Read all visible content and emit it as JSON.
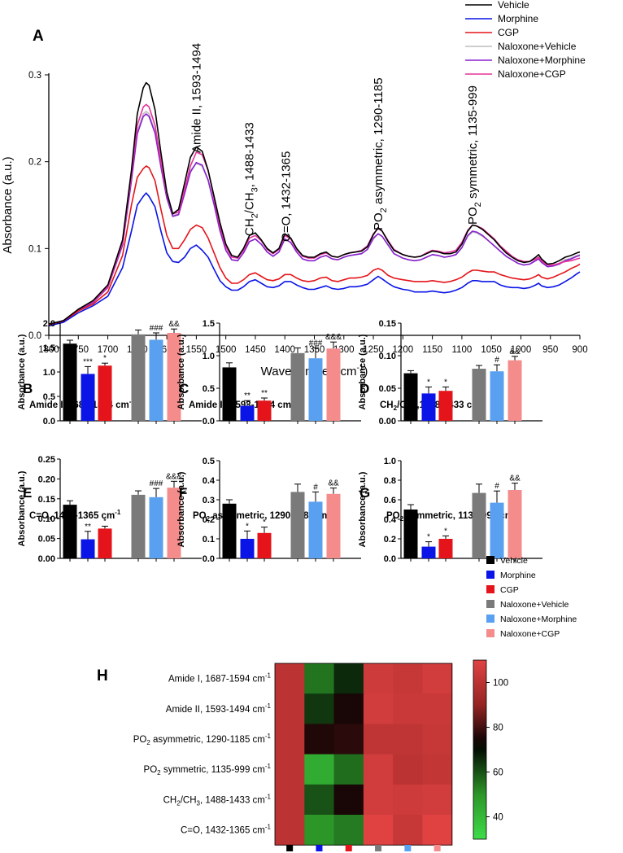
{
  "colors": {
    "vehicle": "#000000",
    "morphine": "#0a14e6",
    "cgp": "#e4141a",
    "naloxone_vehicle": "#7a7a7a",
    "naloxone_morphine": "#5aa0f0",
    "naloxone_cgp": "#f58c8c",
    "spec_naloxone_vehicle": "#bdbdbd",
    "spec_naloxone_morphine": "#8a20d0",
    "spec_naloxone_cgp": "#e6329a"
  },
  "chart_data": [
    {
      "id": "A",
      "panel_label": "A",
      "type": "line",
      "title": "",
      "xlabel_main": "Wavenumber (cm",
      "xlabel_sup": "-1",
      "xlabel_end": ")",
      "ylabel": "Absorbance (a.u.)",
      "xlim": [
        1800,
        900
      ],
      "ylim": [
        0,
        0.3
      ],
      "x_ticks": [
        "1800",
        "1750",
        "1700",
        "1650",
        "1600",
        "1550",
        "1500",
        "1450",
        "1400",
        "1350",
        "1300",
        "1250",
        "1200",
        "1150",
        "1100",
        "1050",
        "1000",
        "950",
        "900"
      ],
      "y_ticks": [
        "0.0",
        "0.1",
        "0.2",
        "0.3"
      ],
      "legend": [
        "Vehicle",
        "Morphine",
        "CGP",
        "Naloxone+Vehicle",
        "Naloxone+Morphine",
        "Naloxone+CGP"
      ],
      "band_labels": [
        {
          "x": 1550,
          "text": "Amide II, 1593-1494"
        },
        {
          "x": 1460,
          "text_pre": "CH",
          "sub1": "2",
          "text_mid": "/CH",
          "sub2": "3",
          "text_post": ", 1488-1433"
        },
        {
          "x": 1398,
          "text": "C=O, 1432-1365"
        },
        {
          "x": 1242,
          "text_pre": "PO",
          "sub1": "2",
          "text_post": " asymmetric, 1290-1185"
        },
        {
          "x": 1082,
          "text_pre": "PO",
          "sub1": "2",
          "text_post": " symmetric, 1135-999"
        }
      ],
      "x": [
        1800,
        1775,
        1750,
        1725,
        1700,
        1675,
        1660,
        1650,
        1640,
        1635,
        1630,
        1620,
        1610,
        1600,
        1590,
        1580,
        1570,
        1560,
        1550,
        1540,
        1530,
        1520,
        1510,
        1500,
        1490,
        1480,
        1470,
        1460,
        1450,
        1440,
        1430,
        1420,
        1410,
        1400,
        1390,
        1380,
        1370,
        1360,
        1350,
        1340,
        1330,
        1320,
        1310,
        1300,
        1290,
        1280,
        1270,
        1260,
        1250,
        1242,
        1235,
        1225,
        1215,
        1200,
        1190,
        1180,
        1170,
        1160,
        1150,
        1140,
        1130,
        1120,
        1110,
        1100,
        1090,
        1082,
        1075,
        1065,
        1055,
        1045,
        1035,
        1025,
        1015,
        1005,
        995,
        985,
        975,
        970,
        965,
        955,
        945,
        935,
        925,
        915,
        905,
        900
      ],
      "series": [
        {
          "name": "Vehicle",
          "values": [
            0.013,
            0.017,
            0.03,
            0.04,
            0.058,
            0.11,
            0.19,
            0.255,
            0.285,
            0.291,
            0.288,
            0.26,
            0.21,
            0.165,
            0.14,
            0.145,
            0.175,
            0.205,
            0.217,
            0.212,
            0.19,
            0.16,
            0.13,
            0.105,
            0.092,
            0.09,
            0.1,
            0.115,
            0.118,
            0.11,
            0.1,
            0.095,
            0.1,
            0.117,
            0.112,
            0.1,
            0.092,
            0.09,
            0.09,
            0.094,
            0.096,
            0.091,
            0.09,
            0.093,
            0.095,
            0.096,
            0.097,
            0.102,
            0.116,
            0.124,
            0.12,
            0.108,
            0.098,
            0.093,
            0.091,
            0.09,
            0.091,
            0.094,
            0.097,
            0.096,
            0.094,
            0.094,
            0.096,
            0.105,
            0.12,
            0.127,
            0.126,
            0.122,
            0.116,
            0.11,
            0.102,
            0.095,
            0.09,
            0.086,
            0.084,
            0.085,
            0.09,
            0.093,
            0.088,
            0.082,
            0.083,
            0.086,
            0.09,
            0.092,
            0.095,
            0.096
          ]
        },
        {
          "name": "Morphine",
          "values": [
            0.011,
            0.015,
            0.026,
            0.034,
            0.045,
            0.078,
            0.12,
            0.15,
            0.16,
            0.164,
            0.16,
            0.148,
            0.12,
            0.095,
            0.085,
            0.084,
            0.09,
            0.1,
            0.104,
            0.098,
            0.09,
            0.076,
            0.063,
            0.056,
            0.052,
            0.052,
            0.056,
            0.062,
            0.064,
            0.06,
            0.056,
            0.055,
            0.057,
            0.062,
            0.062,
            0.058,
            0.055,
            0.053,
            0.053,
            0.055,
            0.057,
            0.054,
            0.053,
            0.054,
            0.056,
            0.056,
            0.057,
            0.059,
            0.064,
            0.068,
            0.065,
            0.06,
            0.056,
            0.053,
            0.052,
            0.05,
            0.05,
            0.05,
            0.051,
            0.05,
            0.049,
            0.05,
            0.052,
            0.055,
            0.06,
            0.063,
            0.063,
            0.062,
            0.062,
            0.062,
            0.058,
            0.056,
            0.055,
            0.055,
            0.054,
            0.055,
            0.058,
            0.06,
            0.057,
            0.055,
            0.056,
            0.058,
            0.062,
            0.066,
            0.071,
            0.073
          ]
        },
        {
          "name": "CGP",
          "values": [
            0.012,
            0.016,
            0.028,
            0.036,
            0.05,
            0.092,
            0.15,
            0.182,
            0.192,
            0.195,
            0.193,
            0.178,
            0.145,
            0.115,
            0.1,
            0.1,
            0.11,
            0.122,
            0.127,
            0.124,
            0.112,
            0.095,
            0.078,
            0.066,
            0.06,
            0.06,
            0.064,
            0.07,
            0.072,
            0.068,
            0.064,
            0.063,
            0.065,
            0.07,
            0.07,
            0.066,
            0.063,
            0.062,
            0.063,
            0.066,
            0.067,
            0.063,
            0.062,
            0.064,
            0.066,
            0.066,
            0.067,
            0.069,
            0.075,
            0.077,
            0.075,
            0.069,
            0.066,
            0.064,
            0.063,
            0.062,
            0.062,
            0.062,
            0.063,
            0.062,
            0.061,
            0.062,
            0.064,
            0.067,
            0.072,
            0.075,
            0.075,
            0.074,
            0.073,
            0.073,
            0.07,
            0.068,
            0.066,
            0.065,
            0.064,
            0.065,
            0.068,
            0.07,
            0.067,
            0.065,
            0.067,
            0.07,
            0.073,
            0.077,
            0.08,
            0.082
          ]
        },
        {
          "name": "Naloxone+Vehicle",
          "values": [
            0.012,
            0.017,
            0.029,
            0.038,
            0.055,
            0.105,
            0.18,
            0.235,
            0.255,
            0.258,
            0.255,
            0.235,
            0.195,
            0.16,
            0.138,
            0.14,
            0.165,
            0.19,
            0.198,
            0.195,
            0.178,
            0.15,
            0.12,
            0.098,
            0.087,
            0.086,
            0.095,
            0.108,
            0.111,
            0.105,
            0.096,
            0.091,
            0.096,
            0.111,
            0.107,
            0.096,
            0.088,
            0.086,
            0.086,
            0.09,
            0.092,
            0.088,
            0.087,
            0.09,
            0.092,
            0.093,
            0.094,
            0.099,
            0.111,
            0.117,
            0.114,
            0.104,
            0.094,
            0.089,
            0.087,
            0.086,
            0.087,
            0.09,
            0.093,
            0.092,
            0.09,
            0.091,
            0.093,
            0.101,
            0.114,
            0.119,
            0.118,
            0.114,
            0.109,
            0.103,
            0.097,
            0.091,
            0.087,
            0.083,
            0.081,
            0.082,
            0.087,
            0.089,
            0.085,
            0.079,
            0.08,
            0.083,
            0.087,
            0.089,
            0.092,
            0.093
          ]
        },
        {
          "name": "Naloxone+Morphine",
          "values": [
            0.012,
            0.017,
            0.029,
            0.038,
            0.055,
            0.104,
            0.178,
            0.232,
            0.252,
            0.255,
            0.252,
            0.233,
            0.194,
            0.158,
            0.137,
            0.139,
            0.163,
            0.188,
            0.199,
            0.196,
            0.179,
            0.151,
            0.121,
            0.098,
            0.087,
            0.086,
            0.095,
            0.108,
            0.111,
            0.105,
            0.096,
            0.091,
            0.096,
            0.111,
            0.107,
            0.096,
            0.088,
            0.086,
            0.086,
            0.09,
            0.092,
            0.088,
            0.087,
            0.09,
            0.092,
            0.093,
            0.094,
            0.099,
            0.112,
            0.117,
            0.114,
            0.104,
            0.094,
            0.089,
            0.087,
            0.086,
            0.087,
            0.09,
            0.093,
            0.092,
            0.09,
            0.091,
            0.093,
            0.101,
            0.115,
            0.12,
            0.119,
            0.115,
            0.109,
            0.103,
            0.097,
            0.091,
            0.087,
            0.083,
            0.081,
            0.082,
            0.086,
            0.088,
            0.084,
            0.079,
            0.08,
            0.082,
            0.086,
            0.088,
            0.091,
            0.092
          ]
        },
        {
          "name": "Naloxone+CGP",
          "values": [
            0.012,
            0.017,
            0.03,
            0.039,
            0.056,
            0.107,
            0.184,
            0.242,
            0.263,
            0.266,
            0.263,
            0.242,
            0.2,
            0.163,
            0.14,
            0.142,
            0.168,
            0.195,
            0.211,
            0.208,
            0.19,
            0.158,
            0.126,
            0.102,
            0.09,
            0.089,
            0.098,
            0.112,
            0.115,
            0.109,
            0.099,
            0.094,
            0.099,
            0.115,
            0.111,
            0.099,
            0.091,
            0.089,
            0.089,
            0.093,
            0.095,
            0.091,
            0.09,
            0.093,
            0.095,
            0.096,
            0.098,
            0.103,
            0.117,
            0.123,
            0.12,
            0.109,
            0.099,
            0.093,
            0.091,
            0.09,
            0.091,
            0.095,
            0.098,
            0.097,
            0.095,
            0.096,
            0.098,
            0.107,
            0.121,
            0.127,
            0.126,
            0.123,
            0.117,
            0.111,
            0.103,
            0.097,
            0.091,
            0.087,
            0.085,
            0.085,
            0.088,
            0.09,
            0.086,
            0.081,
            0.081,
            0.083,
            0.085,
            0.086,
            0.088,
            0.089
          ]
        }
      ]
    },
    {
      "id": "B",
      "panel_label": "B",
      "type": "bar",
      "title": {
        "pre": "Amide I, 1687-1594 cm",
        "sup": "-1",
        "post": ""
      },
      "ylabel": "Absorbance (a.u.)",
      "ylim": [
        0,
        2.0
      ],
      "y_ticks": [
        "0.0",
        "0.5",
        "1.0",
        "1.5",
        "2.0"
      ],
      "values": [
        1.58,
        0.96,
        1.13,
        1.77,
        1.66,
        1.8
      ],
      "errors": [
        0.07,
        0.15,
        0.05,
        0.09,
        0.14,
        0.08
      ],
      "marks": [
        "",
        "***",
        "*",
        "",
        "###",
        "&&"
      ]
    },
    {
      "id": "C",
      "panel_label": "C",
      "type": "bar",
      "title": {
        "pre": "Amide II, 1593-1494 cm",
        "sup": "-1",
        "post": ""
      },
      "ylabel": "Absorbance (a.u.)",
      "ylim": [
        0,
        1.5
      ],
      "y_ticks": [
        "0.0",
        "0.5",
        "1.0",
        "1.5"
      ],
      "values": [
        0.82,
        0.23,
        0.31,
        1.04,
        0.96,
        1.11
      ],
      "errors": [
        0.07,
        0.08,
        0.04,
        0.08,
        0.16,
        0.1
      ],
      "marks": [
        "",
        "**",
        "**",
        "",
        "###",
        "&&&"
      ]
    },
    {
      "id": "D",
      "panel_label": "D",
      "type": "bar",
      "title": {
        "pre": "CH",
        "sub1": "2",
        "mid": "/CH",
        "sub2": "3",
        "post": ",1488-1433 cm",
        "sup": "-1"
      },
      "ylabel": "Absorbance (a.u.)",
      "ylim": [
        0,
        0.15
      ],
      "y_ticks": [
        "0.00",
        "0.05",
        "0.10",
        "0.15"
      ],
      "values": [
        0.073,
        0.042,
        0.046,
        0.08,
        0.076,
        0.093
      ],
      "errors": [
        0.004,
        0.01,
        0.006,
        0.005,
        0.01,
        0.006
      ],
      "marks": [
        "",
        "*",
        "*",
        "",
        "#",
        "&&"
      ]
    },
    {
      "id": "E",
      "panel_label": "E",
      "type": "bar",
      "title": {
        "pre": "C=O, 1432-1365 cm",
        "sup": "-1",
        "post": ""
      },
      "ylabel": "Absorbance (a.u.)",
      "ylim": [
        0,
        0.25
      ],
      "y_ticks": [
        "0.00",
        "0.05",
        "0.10",
        "0.15",
        "0.20",
        "0.25"
      ],
      "values": [
        0.135,
        0.048,
        0.075,
        0.16,
        0.154,
        0.178
      ],
      "errors": [
        0.01,
        0.02,
        0.006,
        0.01,
        0.022,
        0.016
      ],
      "marks": [
        "",
        "**",
        "*",
        "",
        "###",
        "&&&"
      ]
    },
    {
      "id": "F",
      "panel_label": "F",
      "type": "bar",
      "title": {
        "pre": "PO",
        "sub1": "2",
        "post": " asymmetric, 1290-1185  cm",
        "sup": "-1"
      },
      "ylabel": "Absorbance (a.u.)",
      "ylim": [
        0,
        0.5
      ],
      "y_ticks": [
        "0.0",
        "0.1",
        "0.2",
        "0.3",
        "0.4",
        "0.5"
      ],
      "values": [
        0.28,
        0.1,
        0.13,
        0.34,
        0.29,
        0.33
      ],
      "errors": [
        0.02,
        0.04,
        0.03,
        0.04,
        0.05,
        0.03
      ],
      "marks": [
        "",
        "*",
        "*",
        "",
        "#",
        "&&"
      ]
    },
    {
      "id": "G",
      "panel_label": "G",
      "type": "bar",
      "title": {
        "pre": "PO",
        "sub1": "2",
        "post": " symmetric, 1135-999 cm",
        "sup": "-1"
      },
      "ylabel": "Absorbance (a.u.)",
      "ylim": [
        0,
        1.0
      ],
      "y_ticks": [
        "0.0",
        "0.2",
        "0.4",
        "0.6",
        "0.8",
        "1.0"
      ],
      "values": [
        0.5,
        0.12,
        0.2,
        0.67,
        0.57,
        0.7
      ],
      "errors": [
        0.05,
        0.05,
        0.03,
        0.09,
        0.12,
        0.07
      ],
      "marks": [
        "",
        "*",
        "*",
        "",
        "#",
        "&&"
      ]
    },
    {
      "id": "H",
      "panel_label": "H",
      "type": "heatmap",
      "rows": [
        {
          "pre": "Amide I, 1687-1594 cm",
          "sup": "-1"
        },
        {
          "pre": "Amide II, 1593-1494 cm",
          "sup": "-1"
        },
        {
          "pre": "PO",
          "sub1": "2",
          "post": " asymmetric, 1290-1185 cm",
          "sup": "-1"
        },
        {
          "pre": "PO",
          "sub1": "2",
          "post": " symmetric, 1135-999 cm",
          "sup": "-1"
        },
        {
          "pre": "CH",
          "sub1": "2",
          "mid": "/CH",
          "sub2": "3",
          "post": ", 1488-1433 cm",
          "sup": "-1"
        },
        {
          "pre": "C=O, 1432-1365 cm",
          "sup": "-1"
        }
      ],
      "columns": [
        "Vehicle",
        "Morphine",
        "CGP",
        "Naloxone+Vehicle",
        "Naloxone+Morphine",
        "Naloxone+CGP"
      ],
      "values": [
        [
          100,
          55,
          66,
          105,
          103,
          106
        ],
        [
          100,
          64,
          75,
          106,
          104,
          104
        ],
        [
          100,
          76,
          77,
          101,
          101,
          103
        ],
        [
          100,
          44,
          56,
          106,
          100,
          102
        ],
        [
          100,
          60,
          75,
          106,
          105,
          106
        ],
        [
          100,
          50,
          54,
          110,
          103,
          111
        ]
      ],
      "colorbar_range": [
        30,
        110
      ],
      "colorbar_ticks": [
        "40",
        "60",
        "80",
        "100"
      ]
    }
  ],
  "bar_legend": [
    "Vehicle",
    "Morphine",
    "CGP",
    "Naloxone+Vehicle",
    "Naloxone+Morphine",
    "Naloxone+CGP"
  ]
}
